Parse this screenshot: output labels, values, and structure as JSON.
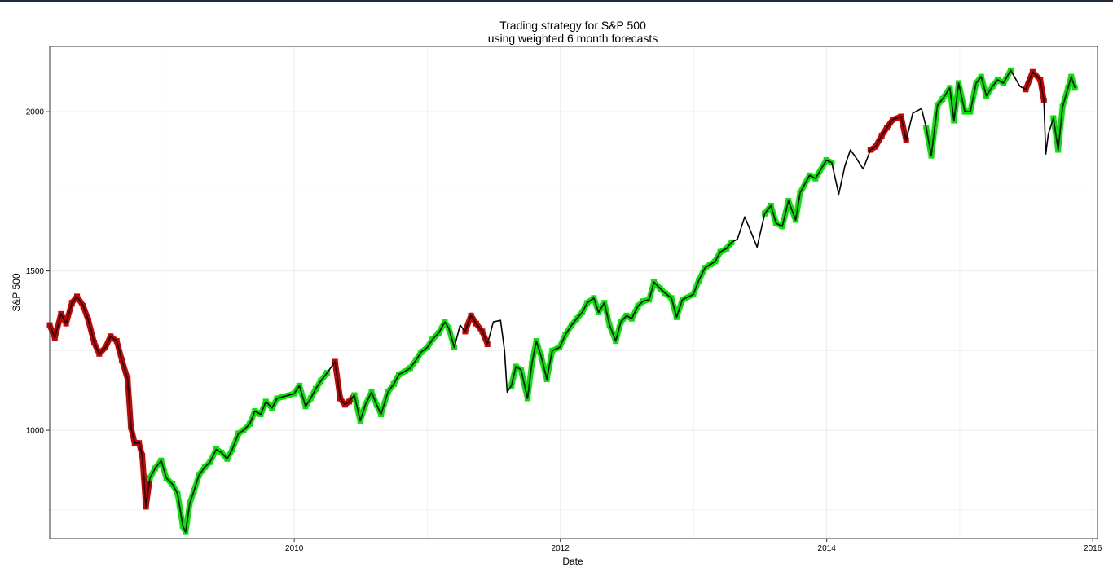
{
  "window": {
    "top_bar_color": "#1e2b3a"
  },
  "chart_data": {
    "type": "line",
    "title": "Trading strategy for S&P 500",
    "subtitle": "using weighted 6 month forecasts",
    "xlabel": "Date",
    "ylabel": "S&P 500",
    "xlim": [
      "2008-03-01",
      "2016-01-14"
    ],
    "ylim": [
      660,
      2205
    ],
    "x_ticks": [
      "2010",
      "2012",
      "2014",
      "2016"
    ],
    "y_ticks": [
      1000,
      1500,
      2000
    ],
    "grid": true,
    "legend": "none",
    "colors": {
      "price_line": "#000000",
      "signal_sell": "#cc0000",
      "signal_buy": "#00e600",
      "grid": "#ebebeb",
      "panel_border": "#333333"
    },
    "series": [
      {
        "points": [
          [
            "2008-03-01",
            1330
          ],
          [
            "2008-03-15",
            1290
          ],
          [
            "2008-04-01",
            1365
          ],
          [
            "2008-04-15",
            1335
          ],
          [
            "2008-05-01",
            1400
          ],
          [
            "2008-05-15",
            1420
          ],
          [
            "2008-06-01",
            1390
          ],
          [
            "2008-06-15",
            1345
          ],
          [
            "2008-07-01",
            1275
          ],
          [
            "2008-07-15",
            1240
          ],
          [
            "2008-08-01",
            1260
          ],
          [
            "2008-08-15",
            1295
          ],
          [
            "2008-09-01",
            1280
          ],
          [
            "2008-09-15",
            1220
          ],
          [
            "2008-10-01",
            1160
          ],
          [
            "2008-10-10",
            1010
          ],
          [
            "2008-10-20",
            960
          ],
          [
            "2008-11-01",
            960
          ],
          [
            "2008-11-10",
            920
          ],
          [
            "2008-11-20",
            760
          ],
          [
            "2008-12-01",
            850
          ],
          [
            "2008-12-15",
            880
          ],
          [
            "2009-01-01",
            905
          ],
          [
            "2009-01-15",
            850
          ],
          [
            "2009-02-01",
            830
          ],
          [
            "2009-02-15",
            800
          ],
          [
            "2009-03-01",
            700
          ],
          [
            "2009-03-09",
            680
          ],
          [
            "2009-03-20",
            770
          ],
          [
            "2009-04-01",
            810
          ],
          [
            "2009-04-15",
            860
          ],
          [
            "2009-05-01",
            885
          ],
          [
            "2009-05-15",
            900
          ],
          [
            "2009-06-01",
            940
          ],
          [
            "2009-06-15",
            930
          ],
          [
            "2009-07-01",
            910
          ],
          [
            "2009-07-15",
            940
          ],
          [
            "2009-08-01",
            990
          ],
          [
            "2009-08-15",
            1000
          ],
          [
            "2009-09-01",
            1020
          ],
          [
            "2009-09-15",
            1060
          ],
          [
            "2009-10-01",
            1050
          ],
          [
            "2009-10-15",
            1090
          ],
          [
            "2009-11-01",
            1070
          ],
          [
            "2009-11-15",
            1100
          ],
          [
            "2009-12-01",
            1105
          ],
          [
            "2010-01-01",
            1115
          ],
          [
            "2010-01-15",
            1140
          ],
          [
            "2010-02-01",
            1075
          ],
          [
            "2010-02-15",
            1100
          ],
          [
            "2010-03-01",
            1130
          ],
          [
            "2010-03-15",
            1155
          ],
          [
            "2010-04-01",
            1180
          ],
          [
            "2010-04-23",
            1215
          ],
          [
            "2010-05-07",
            1100
          ],
          [
            "2010-05-20",
            1080
          ],
          [
            "2010-06-01",
            1090
          ],
          [
            "2010-06-15",
            1110
          ],
          [
            "2010-07-01",
            1030
          ],
          [
            "2010-07-15",
            1080
          ],
          [
            "2010-08-01",
            1120
          ],
          [
            "2010-08-15",
            1080
          ],
          [
            "2010-08-27",
            1050
          ],
          [
            "2010-09-15",
            1120
          ],
          [
            "2010-10-01",
            1145
          ],
          [
            "2010-10-15",
            1175
          ],
          [
            "2010-11-01",
            1185
          ],
          [
            "2010-11-15",
            1195
          ],
          [
            "2010-12-01",
            1220
          ],
          [
            "2010-12-15",
            1245
          ],
          [
            "2011-01-01",
            1260
          ],
          [
            "2011-01-15",
            1285
          ],
          [
            "2011-02-01",
            1305
          ],
          [
            "2011-02-18",
            1340
          ],
          [
            "2011-03-01",
            1320
          ],
          [
            "2011-03-16",
            1260
          ],
          [
            "2011-04-01",
            1330
          ],
          [
            "2011-04-15",
            1310
          ],
          [
            "2011-05-01",
            1360
          ],
          [
            "2011-05-15",
            1335
          ],
          [
            "2011-06-01",
            1310
          ],
          [
            "2011-06-15",
            1270
          ],
          [
            "2011-07-01",
            1340
          ],
          [
            "2011-07-21",
            1345
          ],
          [
            "2011-08-01",
            1250
          ],
          [
            "2011-08-08",
            1120
          ],
          [
            "2011-08-20",
            1140
          ],
          [
            "2011-09-01",
            1200
          ],
          [
            "2011-09-15",
            1190
          ],
          [
            "2011-10-03",
            1100
          ],
          [
            "2011-10-15",
            1210
          ],
          [
            "2011-10-27",
            1280
          ],
          [
            "2011-11-10",
            1230
          ],
          [
            "2011-11-25",
            1160
          ],
          [
            "2011-12-10",
            1250
          ],
          [
            "2011-12-30",
            1260
          ],
          [
            "2012-01-15",
            1300
          ],
          [
            "2012-02-01",
            1330
          ],
          [
            "2012-02-15",
            1350
          ],
          [
            "2012-03-01",
            1370
          ],
          [
            "2012-03-15",
            1400
          ],
          [
            "2012-04-02",
            1415
          ],
          [
            "2012-04-15",
            1370
          ],
          [
            "2012-05-01",
            1400
          ],
          [
            "2012-05-15",
            1330
          ],
          [
            "2012-06-01",
            1280
          ],
          [
            "2012-06-15",
            1340
          ],
          [
            "2012-07-01",
            1360
          ],
          [
            "2012-07-15",
            1350
          ],
          [
            "2012-08-01",
            1390
          ],
          [
            "2012-08-15",
            1405
          ],
          [
            "2012-09-01",
            1410
          ],
          [
            "2012-09-14",
            1465
          ],
          [
            "2012-10-01",
            1445
          ],
          [
            "2012-10-15",
            1430
          ],
          [
            "2012-11-01",
            1415
          ],
          [
            "2012-11-15",
            1355
          ],
          [
            "2012-12-01",
            1410
          ],
          [
            "2012-12-31",
            1426
          ],
          [
            "2013-01-15",
            1470
          ],
          [
            "2013-02-01",
            1510
          ],
          [
            "2013-02-15",
            1520
          ],
          [
            "2013-03-01",
            1530
          ],
          [
            "2013-03-15",
            1560
          ],
          [
            "2013-04-01",
            1570
          ],
          [
            "2013-04-15",
            1590
          ],
          [
            "2013-05-01",
            1600
          ],
          [
            "2013-05-21",
            1670
          ],
          [
            "2013-06-01",
            1640
          ],
          [
            "2013-06-24",
            1575
          ],
          [
            "2013-07-15",
            1680
          ],
          [
            "2013-08-01",
            1705
          ],
          [
            "2013-08-15",
            1650
          ],
          [
            "2013-09-01",
            1640
          ],
          [
            "2013-09-18",
            1720
          ],
          [
            "2013-10-08",
            1660
          ],
          [
            "2013-10-20",
            1745
          ],
          [
            "2013-11-15",
            1800
          ],
          [
            "2013-12-01",
            1790
          ],
          [
            "2013-12-31",
            1848
          ],
          [
            "2014-01-15",
            1840
          ],
          [
            "2014-02-03",
            1741
          ],
          [
            "2014-02-20",
            1830
          ],
          [
            "2014-03-07",
            1880
          ],
          [
            "2014-03-20",
            1860
          ],
          [
            "2014-04-11",
            1820
          ],
          [
            "2014-05-01",
            1880
          ],
          [
            "2014-05-15",
            1890
          ],
          [
            "2014-06-01",
            1925
          ],
          [
            "2014-06-15",
            1950
          ],
          [
            "2014-07-01",
            1975
          ],
          [
            "2014-07-24",
            1985
          ],
          [
            "2014-08-07",
            1910
          ],
          [
            "2014-08-25",
            1995
          ],
          [
            "2014-09-18",
            2010
          ],
          [
            "2014-10-01",
            1950
          ],
          [
            "2014-10-15",
            1862
          ],
          [
            "2014-11-01",
            2020
          ],
          [
            "2014-11-15",
            2040
          ],
          [
            "2014-12-05",
            2075
          ],
          [
            "2014-12-16",
            1972
          ],
          [
            "2014-12-29",
            2090
          ],
          [
            "2015-01-15",
            2000
          ],
          [
            "2015-01-30",
            2000
          ],
          [
            "2015-02-15",
            2090
          ],
          [
            "2015-03-01",
            2110
          ],
          [
            "2015-03-15",
            2050
          ],
          [
            "2015-04-01",
            2080
          ],
          [
            "2015-04-15",
            2100
          ],
          [
            "2015-05-01",
            2090
          ],
          [
            "2015-05-21",
            2130
          ],
          [
            "2015-06-15",
            2080
          ],
          [
            "2015-07-01",
            2070
          ],
          [
            "2015-07-20",
            2125
          ],
          [
            "2015-08-10",
            2100
          ],
          [
            "2015-08-20",
            2035
          ],
          [
            "2015-08-25",
            1867
          ],
          [
            "2015-09-01",
            1930
          ],
          [
            "2015-09-15",
            1980
          ],
          [
            "2015-09-28",
            1880
          ],
          [
            "2015-10-10",
            2015
          ],
          [
            "2015-10-25",
            2075
          ],
          [
            "2015-11-03",
            2110
          ],
          [
            "2015-11-13",
            2075
          ]
        ]
      }
    ],
    "signal_segments": [
      {
        "signal": "sell",
        "from": "2008-03-01",
        "to": "2008-12-01"
      },
      {
        "signal": "buy",
        "from": "2008-12-01",
        "to": "2010-04-01"
      },
      {
        "signal": "sell",
        "from": "2010-04-20",
        "to": "2010-06-15"
      },
      {
        "signal": "buy",
        "from": "2010-06-15",
        "to": "2011-03-16"
      },
      {
        "signal": "sell",
        "from": "2011-04-15",
        "to": "2011-06-15"
      },
      {
        "signal": "buy",
        "from": "2011-08-20",
        "to": "2013-04-15"
      },
      {
        "signal": "buy",
        "from": "2013-07-15",
        "to": "2014-01-15"
      },
      {
        "signal": "sell",
        "from": "2014-04-15",
        "to": "2014-08-07"
      },
      {
        "signal": "buy",
        "from": "2014-10-01",
        "to": "2015-05-21"
      },
      {
        "signal": "sell",
        "from": "2015-07-01",
        "to": "2015-08-20"
      },
      {
        "signal": "buy",
        "from": "2015-09-15",
        "to": "2015-11-13"
      }
    ]
  }
}
